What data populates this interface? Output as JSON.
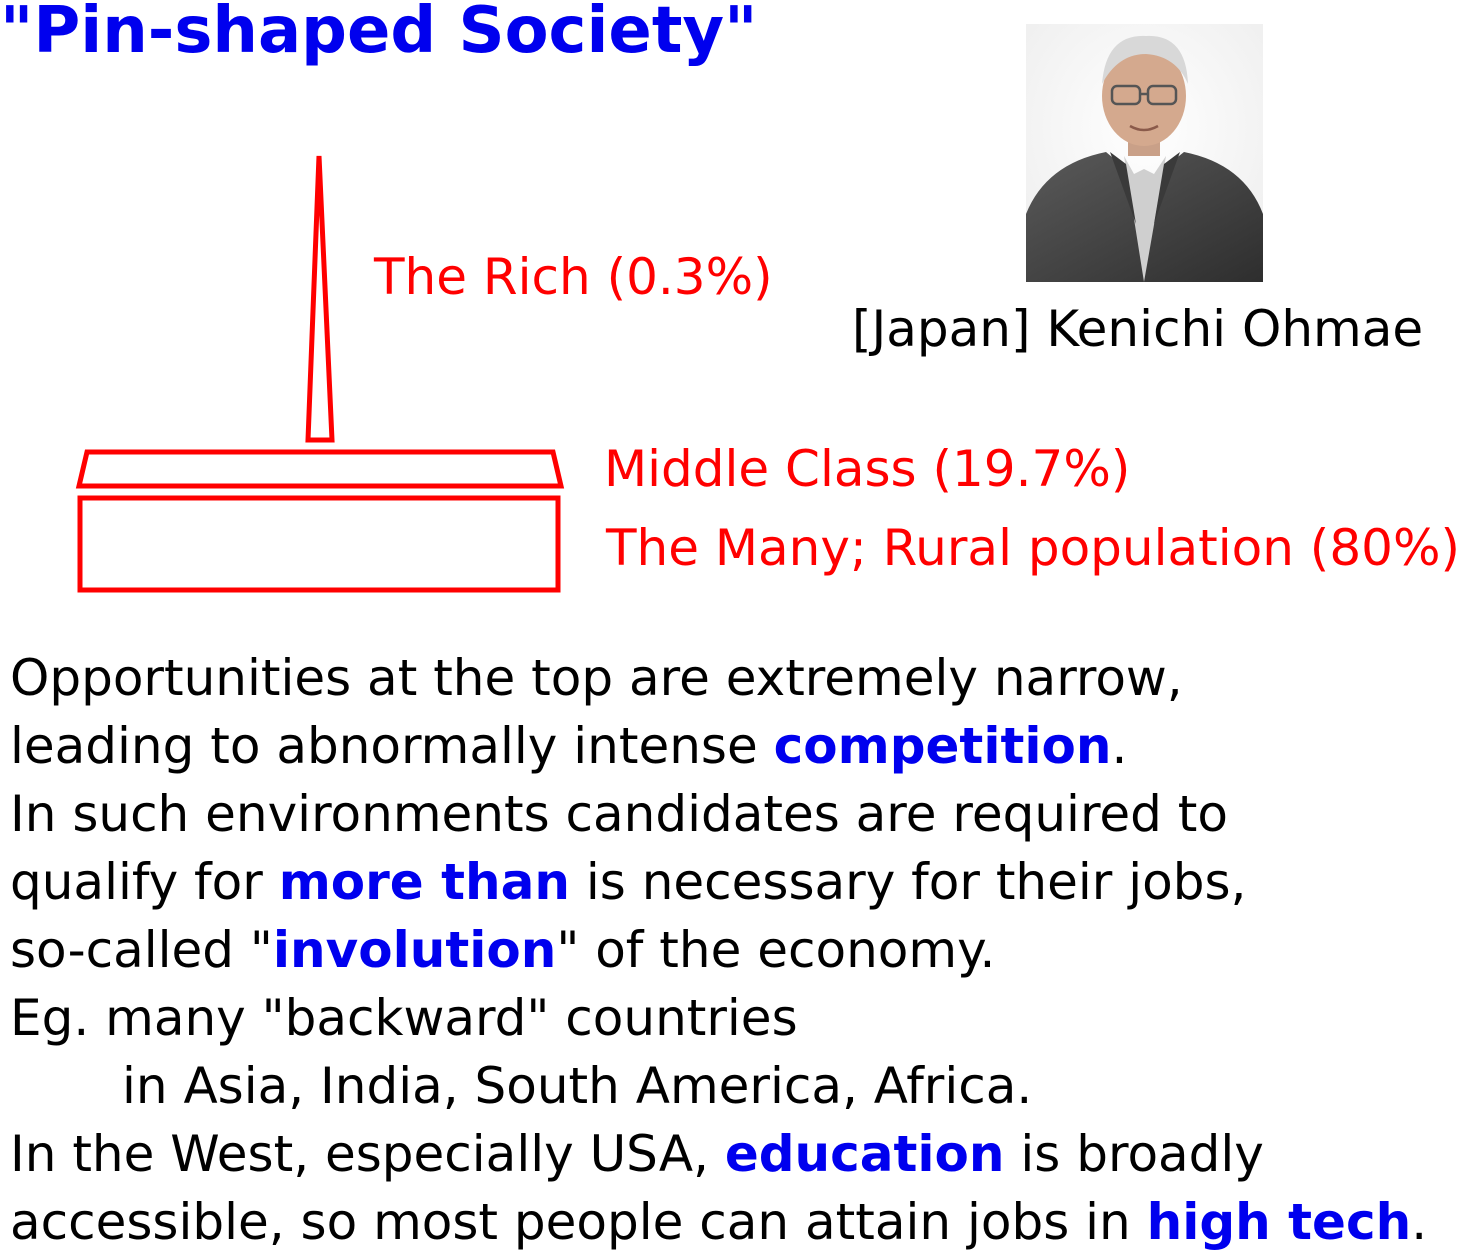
{
  "title": "\"Pin-shaped Society\"",
  "labels": {
    "rich": "The Rich (0.3%)",
    "middle": "Middle Class (19.7%)",
    "many": "The Many; Rural population (80%)"
  },
  "photo_caption": "[Japan] Kenichi Ohmae",
  "colors": {
    "title": "#0000ee",
    "labels": "#ff0000",
    "highlight": "#0000ee"
  },
  "body": {
    "l1": "Opportunities at the top are extremely narrow,",
    "l2a": "leading to abnormally intense ",
    "l2b": "competition",
    "l2c": ".",
    "l3": "In such environments candidates are required to",
    "l4a": "qualify for ",
    "l4b": "more than",
    "l4c": " is necessary for their jobs,",
    "l5a": "so-called \"",
    "l5b": "involution",
    "l5c": "\" of the economy.",
    "l6": "Eg. many \"backward\" countries",
    "l7": "in Asia, India, South America, Africa.",
    "l8a": "In the West, especially USA, ",
    "l8b": "education",
    "l8c": " is broadly",
    "l9a": "accessible, so most people can attain jobs in ",
    "l9b": "high tech",
    "l9c": "."
  }
}
